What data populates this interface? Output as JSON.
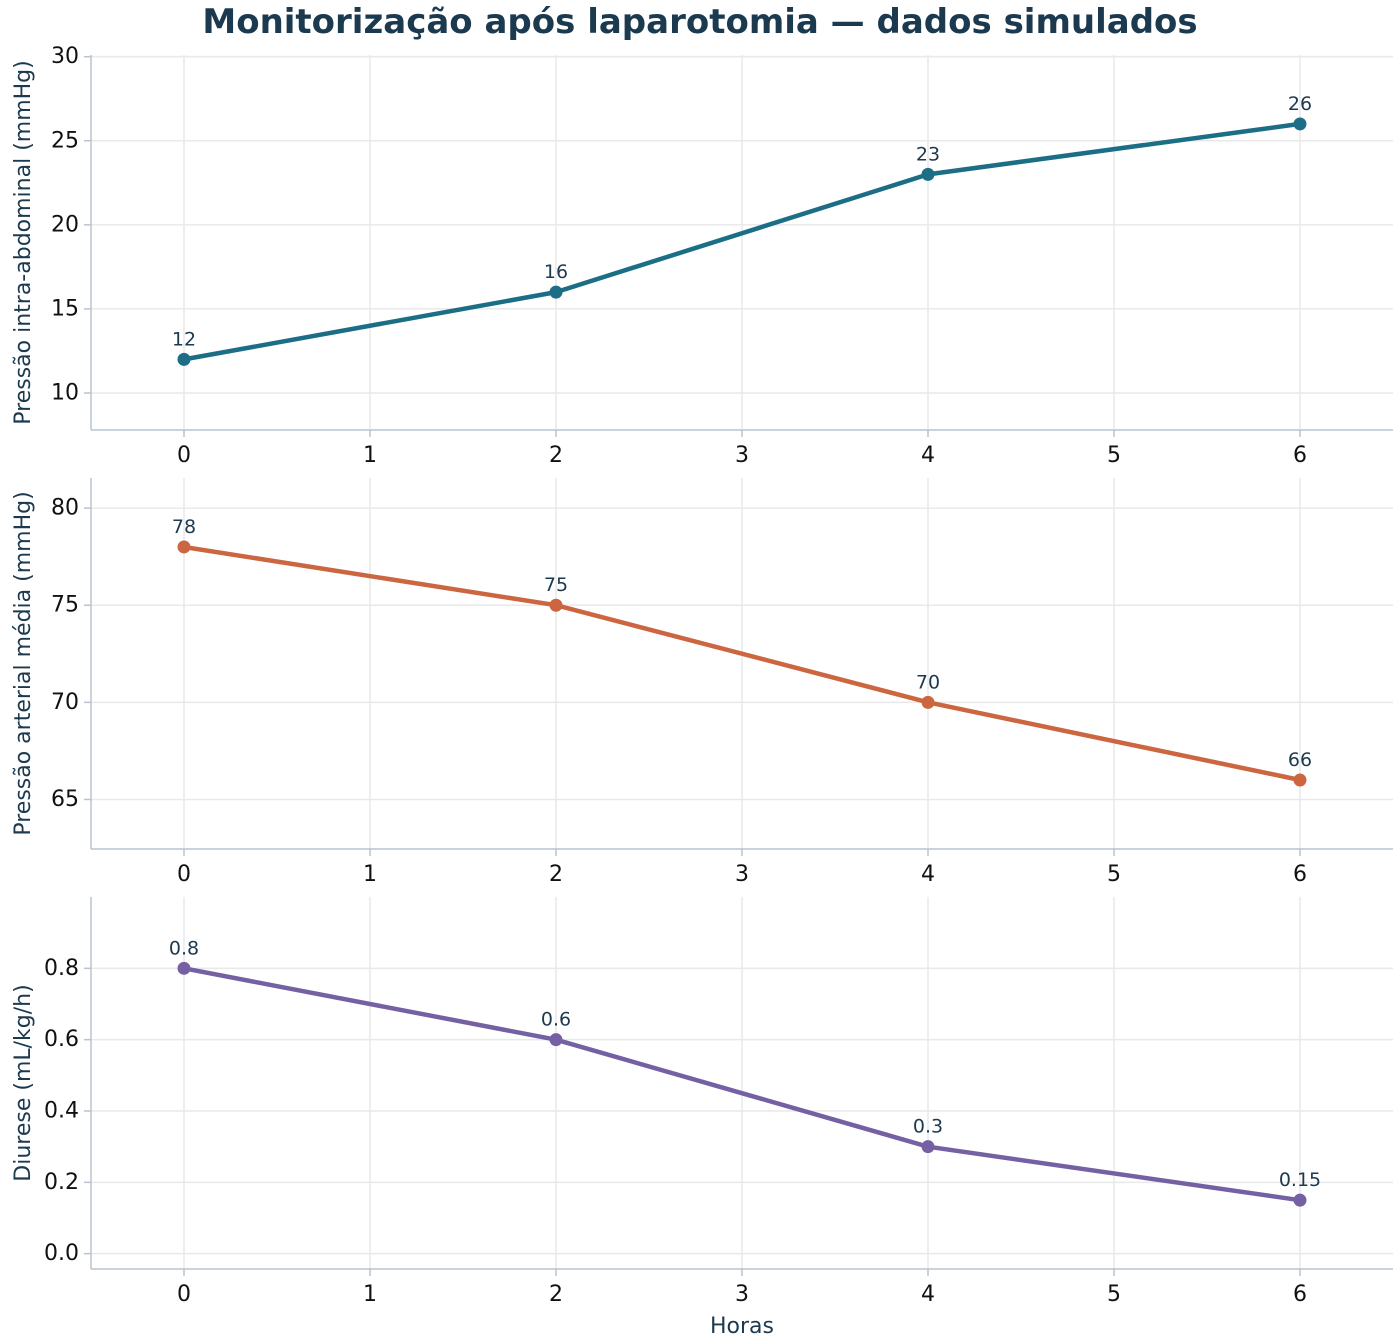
{
  "title": "Monitorização após laparotomia — dados simulados",
  "chart_data": [
    {
      "type": "line",
      "x": [
        0,
        2,
        4,
        6
      ],
      "series": [
        {
          "values": [
            12,
            16,
            23,
            26
          ],
          "color": "#1b6e85"
        }
      ],
      "data_labels": [
        "12",
        "16",
        "23",
        "26"
      ],
      "xlabel": "",
      "ylabel": "Pressão intra-abdominal (mmHg)",
      "xlim": [
        -0.5,
        6.5
      ],
      "ylim": [
        7.8,
        30.1
      ],
      "xticks": [
        "0",
        "1",
        "2",
        "3",
        "4",
        "5",
        "6"
      ],
      "yticks": [
        "10",
        "15",
        "20",
        "25",
        "30"
      ],
      "grid": true
    },
    {
      "type": "line",
      "x": [
        0,
        2,
        4,
        6
      ],
      "series": [
        {
          "values": [
            78,
            75,
            70,
            66
          ],
          "color": "#cc6640"
        }
      ],
      "data_labels": [
        "78",
        "75",
        "70",
        "66"
      ],
      "xlabel": "",
      "ylabel": "Pressão arterial média (mmHg)",
      "xlim": [
        -0.5,
        6.5
      ],
      "ylim": [
        62.45,
        81.55
      ],
      "xticks": [
        "0",
        "1",
        "2",
        "3",
        "4",
        "5",
        "6"
      ],
      "yticks": [
        "65",
        "70",
        "75",
        "80"
      ],
      "grid": true
    },
    {
      "type": "line",
      "x": [
        0,
        2,
        4,
        6
      ],
      "series": [
        {
          "values": [
            0.8,
            0.6,
            0.3,
            0.15
          ],
          "color": "#7560a3"
        }
      ],
      "data_labels": [
        "0.8",
        "0.6",
        "0.3",
        "0.15"
      ],
      "xlabel": "Horas",
      "ylabel": "Diurese (mL/kg/h)",
      "xlim": [
        -0.5,
        6.5
      ],
      "ylim": [
        -0.043,
        1.0
      ],
      "xticks": [
        "0",
        "1",
        "2",
        "3",
        "4",
        "5",
        "6"
      ],
      "yticks": [
        "0.0",
        "0.2",
        "0.4",
        "0.6",
        "0.8"
      ],
      "grid": true
    }
  ]
}
